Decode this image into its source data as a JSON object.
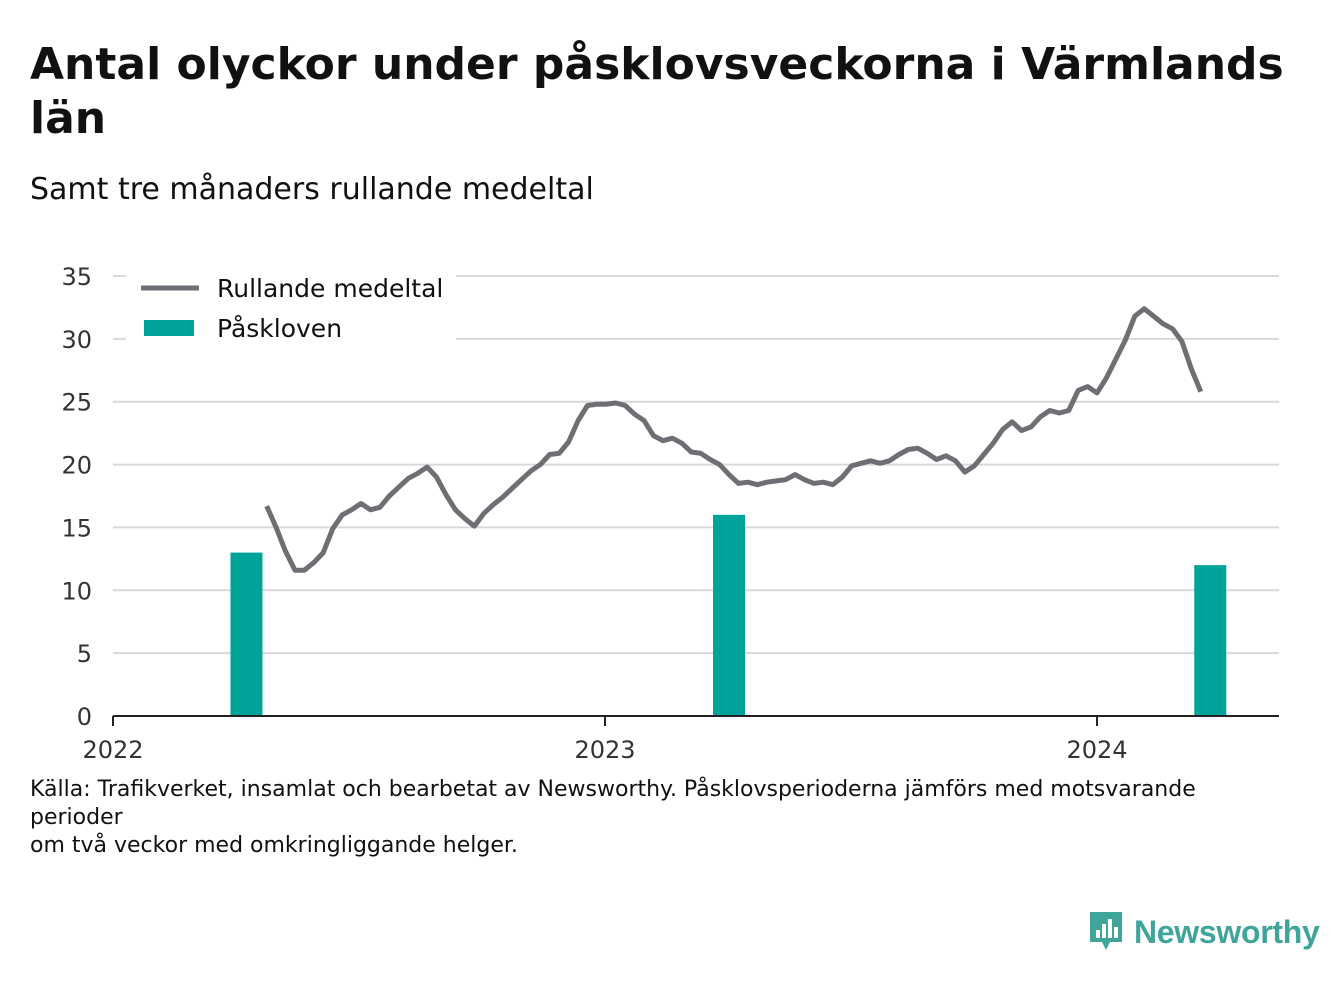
{
  "chart_data": {
    "type": "bar+line",
    "title": "Antal olyckor under påsklovsveckorna i Värmlands län",
    "subtitle": "Samt tre månaders rullande medeltal",
    "ylim": [
      0,
      35
    ],
    "yticks": [
      0,
      5,
      10,
      15,
      20,
      25,
      30,
      35
    ],
    "xlim": [
      "2022-01-01",
      "2024-05-15"
    ],
    "xticks": [
      {
        "date": "2022-01-01",
        "label": "2022"
      },
      {
        "date": "2023-01-01",
        "label": "2023"
      },
      {
        "date": "2024-01-01",
        "label": "2024"
      }
    ],
    "grid": true,
    "legend_position": "top-left",
    "series": [
      {
        "name": "Rullande medeltal",
        "type": "line",
        "color": "#6e6e74",
        "points": [
          [
            "2022-04-25",
            16.7
          ],
          [
            "2022-05-02",
            15.0
          ],
          [
            "2022-05-09",
            13.1
          ],
          [
            "2022-05-16",
            11.6
          ],
          [
            "2022-05-23",
            11.6
          ],
          [
            "2022-05-30",
            12.2
          ],
          [
            "2022-06-06",
            13.0
          ],
          [
            "2022-06-13",
            14.9
          ],
          [
            "2022-06-20",
            16.0
          ],
          [
            "2022-06-27",
            16.4
          ],
          [
            "2022-07-04",
            16.9
          ],
          [
            "2022-07-11",
            16.4
          ],
          [
            "2022-07-18",
            16.6
          ],
          [
            "2022-07-25",
            17.5
          ],
          [
            "2022-08-01",
            18.2
          ],
          [
            "2022-08-08",
            18.9
          ],
          [
            "2022-08-15",
            19.3
          ],
          [
            "2022-08-22",
            19.8
          ],
          [
            "2022-08-29",
            19.0
          ],
          [
            "2022-09-05",
            17.6
          ],
          [
            "2022-09-12",
            16.4
          ],
          [
            "2022-09-19",
            15.7
          ],
          [
            "2022-09-26",
            15.1
          ],
          [
            "2022-10-03",
            16.1
          ],
          [
            "2022-10-10",
            16.8
          ],
          [
            "2022-10-17",
            17.4
          ],
          [
            "2022-10-24",
            18.1
          ],
          [
            "2022-10-31",
            18.8
          ],
          [
            "2022-11-07",
            19.5
          ],
          [
            "2022-11-14",
            20.0
          ],
          [
            "2022-11-21",
            20.8
          ],
          [
            "2022-11-28",
            20.9
          ],
          [
            "2022-12-05",
            21.8
          ],
          [
            "2022-12-12",
            23.5
          ],
          [
            "2022-12-19",
            24.7
          ],
          [
            "2022-12-26",
            24.8
          ],
          [
            "2023-01-02",
            24.8
          ],
          [
            "2023-01-09",
            24.9
          ],
          [
            "2023-01-16",
            24.7
          ],
          [
            "2023-01-23",
            24.0
          ],
          [
            "2023-01-30",
            23.5
          ],
          [
            "2023-02-06",
            22.3
          ],
          [
            "2023-02-13",
            21.9
          ],
          [
            "2023-02-20",
            22.1
          ],
          [
            "2023-02-27",
            21.7
          ],
          [
            "2023-03-06",
            21.0
          ],
          [
            "2023-03-13",
            20.9
          ],
          [
            "2023-03-20",
            20.4
          ],
          [
            "2023-03-27",
            20.0
          ],
          [
            "2023-04-03",
            19.2
          ],
          [
            "2023-04-10",
            18.5
          ],
          [
            "2023-04-17",
            18.6
          ],
          [
            "2023-04-24",
            18.4
          ],
          [
            "2023-05-01",
            18.6
          ],
          [
            "2023-05-08",
            18.7
          ],
          [
            "2023-05-15",
            18.8
          ],
          [
            "2023-05-22",
            19.2
          ],
          [
            "2023-05-29",
            18.8
          ],
          [
            "2023-06-05",
            18.5
          ],
          [
            "2023-06-12",
            18.6
          ],
          [
            "2023-06-19",
            18.4
          ],
          [
            "2023-06-26",
            19.0
          ],
          [
            "2023-07-03",
            19.9
          ],
          [
            "2023-07-10",
            20.1
          ],
          [
            "2023-07-17",
            20.3
          ],
          [
            "2023-07-24",
            20.1
          ],
          [
            "2023-07-31",
            20.3
          ],
          [
            "2023-08-07",
            20.8
          ],
          [
            "2023-08-14",
            21.2
          ],
          [
            "2023-08-21",
            21.3
          ],
          [
            "2023-08-28",
            20.9
          ],
          [
            "2023-09-04",
            20.4
          ],
          [
            "2023-09-11",
            20.7
          ],
          [
            "2023-09-18",
            20.3
          ],
          [
            "2023-09-25",
            19.4
          ],
          [
            "2023-10-02",
            19.9
          ],
          [
            "2023-10-09",
            20.8
          ],
          [
            "2023-10-16",
            21.7
          ],
          [
            "2023-10-23",
            22.8
          ],
          [
            "2023-10-30",
            23.4
          ],
          [
            "2023-11-06",
            22.7
          ],
          [
            "2023-11-13",
            23.0
          ],
          [
            "2023-11-20",
            23.8
          ],
          [
            "2023-11-27",
            24.3
          ],
          [
            "2023-12-04",
            24.1
          ],
          [
            "2023-12-11",
            24.3
          ],
          [
            "2023-12-18",
            25.9
          ],
          [
            "2023-12-25",
            26.2
          ],
          [
            "2024-01-01",
            25.7
          ],
          [
            "2024-01-08",
            26.9
          ],
          [
            "2024-01-15",
            28.4
          ],
          [
            "2024-01-22",
            29.9
          ],
          [
            "2024-01-29",
            31.8
          ],
          [
            "2024-02-05",
            32.4
          ],
          [
            "2024-02-12",
            31.8
          ],
          [
            "2024-02-19",
            31.2
          ],
          [
            "2024-02-26",
            30.8
          ],
          [
            "2024-03-04",
            29.8
          ],
          [
            "2024-03-11",
            27.6
          ],
          [
            "2024-03-18",
            25.8
          ]
        ]
      },
      {
        "name": "Påskloven",
        "type": "bar",
        "color": "#00a399",
        "points": [
          [
            "2022-04-10",
            13
          ],
          [
            "2023-04-03",
            16
          ],
          [
            "2024-03-25",
            12
          ]
        ]
      }
    ]
  },
  "source_note": "Källa: Trafikverket, insamlat och bearbetat av Newsworthy. Påsklovsperioderna jämförs med motsvarande perioder\nom två veckor med omkringliggande helger.",
  "brand": {
    "name": "Newsworthy",
    "icon": "newsworthy-logo-icon",
    "color": "#3fa59a"
  }
}
